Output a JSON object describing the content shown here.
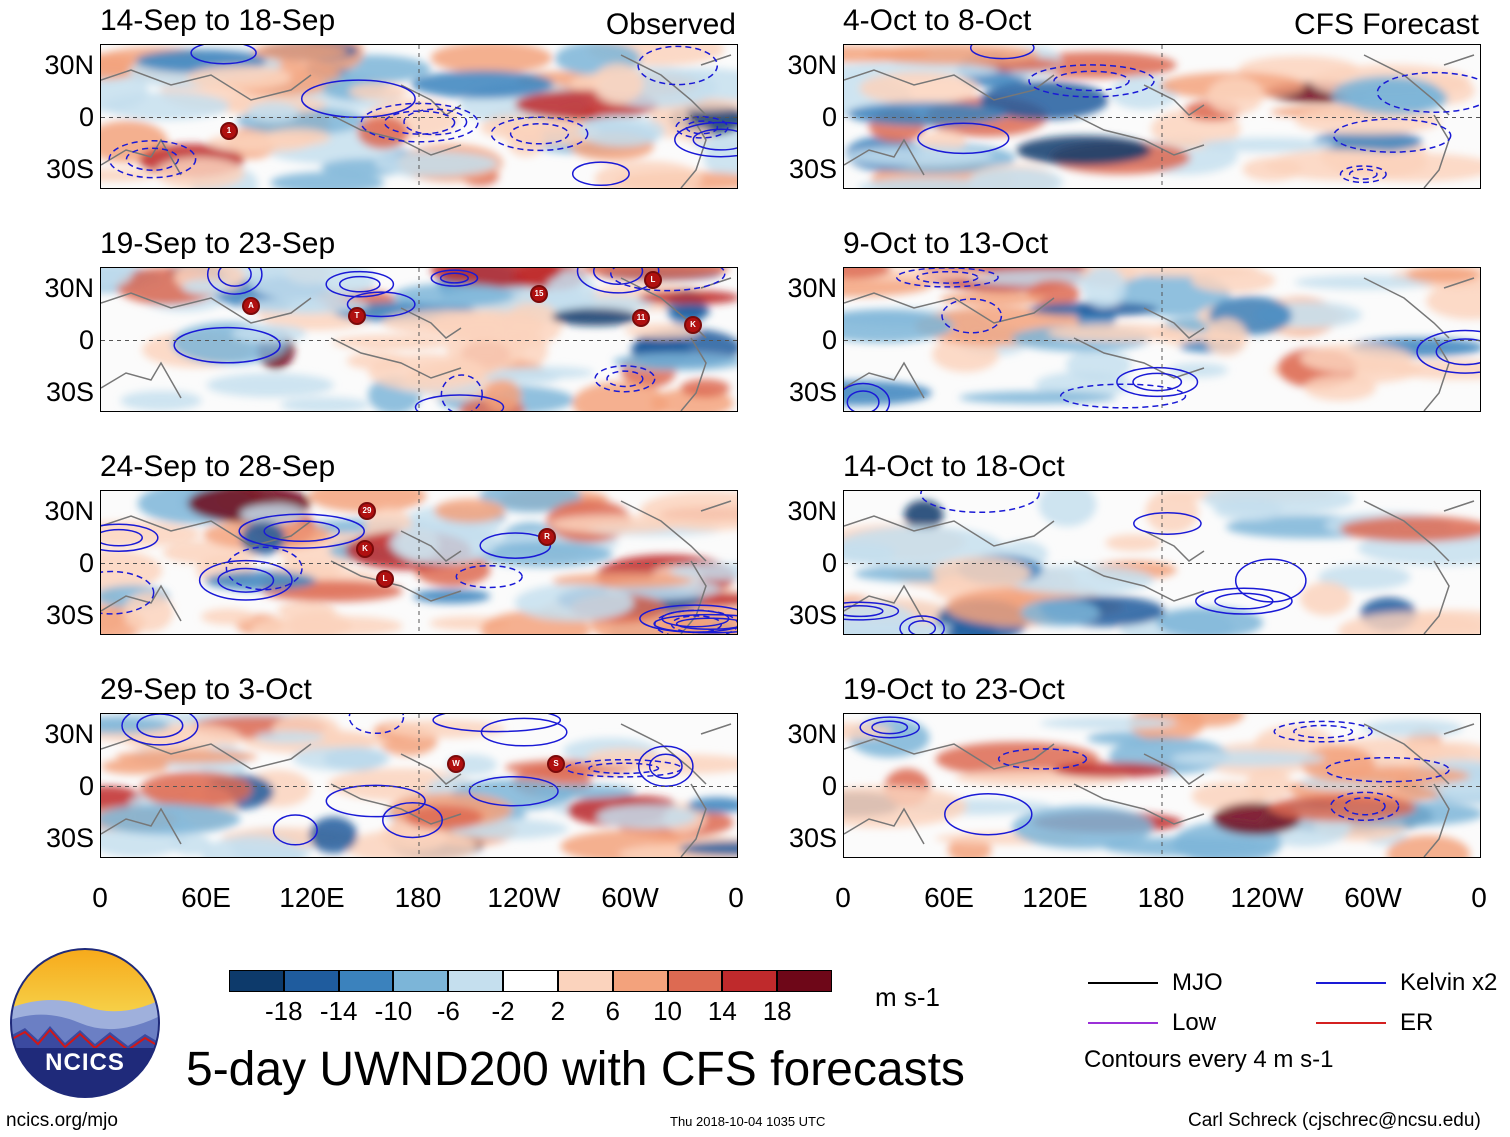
{
  "panels": {
    "left": [
      {
        "title": "14-Sep to 18-Sep",
        "label": "Observed"
      },
      {
        "title": "19-Sep to 23-Sep",
        "label": ""
      },
      {
        "title": "24-Sep to 28-Sep",
        "label": ""
      },
      {
        "title": "29-Sep to 3-Oct",
        "label": ""
      }
    ],
    "right": [
      {
        "title": "4-Oct to 8-Oct",
        "label": "CFS Forecast"
      },
      {
        "title": "9-Oct to 13-Oct",
        "label": ""
      },
      {
        "title": "14-Oct to 18-Oct",
        "label": ""
      },
      {
        "title": "19-Oct to 23-Oct",
        "label": ""
      }
    ]
  },
  "y_axis": {
    "north": "30N",
    "eq": "0",
    "south": "30S"
  },
  "x_axis": [
    "0",
    "60E",
    "120E",
    "180",
    "120W",
    "60W",
    "0"
  ],
  "storm_markers": {
    "p0": [
      "1"
    ],
    "p1": [
      "A",
      "T",
      "15",
      "L",
      "11",
      "K"
    ],
    "p2": [
      "29",
      "K",
      "L",
      "R"
    ],
    "p3": [
      "W",
      "S"
    ]
  },
  "colorbar": {
    "colors": [
      "#0d3a6b",
      "#1f5c9e",
      "#3b82bd",
      "#7cb5d8",
      "#c5dfee",
      "#ffffff",
      "#fbd3bd",
      "#f3a27c",
      "#dd6a52",
      "#bf2a2c",
      "#6e0718"
    ],
    "labels": [
      "-18",
      "-14",
      "-10",
      "-6",
      "-2",
      "2",
      "6",
      "10",
      "14",
      "18"
    ],
    "units": "m s-1"
  },
  "legend": {
    "items": [
      {
        "label": "MJO",
        "color": "#000000"
      },
      {
        "label": "Kelvin x2",
        "color": "#1a1ad6"
      },
      {
        "label": "Low",
        "color": "#9b30d8"
      },
      {
        "label": "ER",
        "color": "#d42020"
      }
    ],
    "note": "Contours every 4 m s-1"
  },
  "logo_text": "NCICS",
  "main_title": "5-day UWND200 with CFS forecasts",
  "footer": {
    "left": "ncics.org/mjo",
    "center": "Thu 2018-10-04 1035 UTC",
    "right": "Carl Schreck (cjschrec@ncsu.edu)"
  }
}
